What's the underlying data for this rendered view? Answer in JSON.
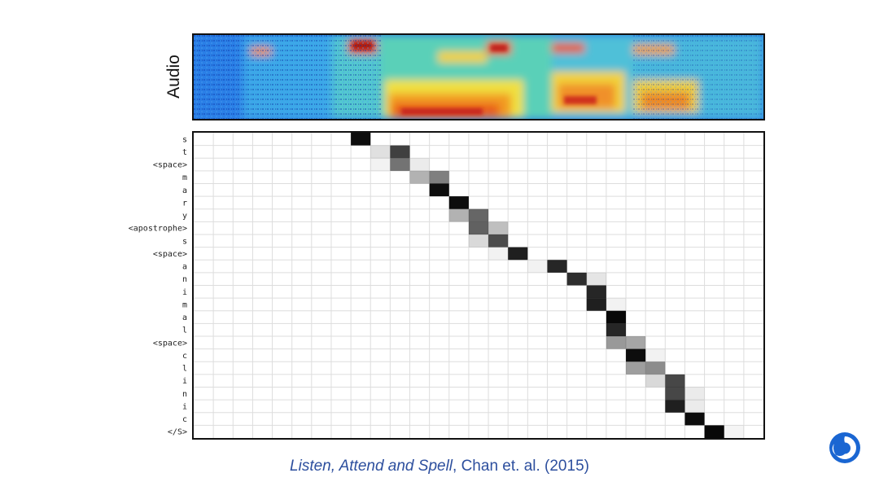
{
  "chart_data": [
    {
      "type": "heatmap",
      "title": "",
      "ylabel": "Audio",
      "xlabel": "",
      "description_colormap": "jet",
      "colors": {
        "low": "#1f6fe0",
        "mid": "#3fd0b0",
        "high": "#e8321a"
      }
    },
    {
      "type": "heatmap",
      "title": "",
      "xlabel": "",
      "ylabel": "",
      "grid": true,
      "colors": {
        "cell": "#000000",
        "grid": "#dddddd",
        "border": "#111111"
      },
      "n_cols": 29,
      "y_labels": [
        "s",
        "t",
        "<space>",
        "m",
        "a",
        "r",
        "y",
        "<apostrophe>",
        "s",
        "<space>",
        "a",
        "n",
        "i",
        "m",
        "a",
        "l",
        "<space>",
        "c",
        "l",
        "i",
        "n",
        "i",
        "c",
        "</S>"
      ],
      "cells": [
        [
          0,
          8,
          0.95
        ],
        [
          1,
          9,
          0.12
        ],
        [
          1,
          10,
          0.75
        ],
        [
          2,
          9,
          0.05
        ],
        [
          2,
          10,
          0.55
        ],
        [
          2,
          11,
          0.08
        ],
        [
          3,
          11,
          0.3
        ],
        [
          3,
          12,
          0.5
        ],
        [
          4,
          12,
          0.95
        ],
        [
          5,
          13,
          0.95
        ],
        [
          6,
          13,
          0.3
        ],
        [
          6,
          14,
          0.6
        ],
        [
          7,
          14,
          0.62
        ],
        [
          7,
          15,
          0.25
        ],
        [
          8,
          14,
          0.15
        ],
        [
          8,
          15,
          0.7
        ],
        [
          9,
          15,
          0.05
        ],
        [
          9,
          16,
          0.88
        ],
        [
          10,
          17,
          0.05
        ],
        [
          10,
          18,
          0.85
        ],
        [
          11,
          19,
          0.82
        ],
        [
          11,
          20,
          0.1
        ],
        [
          12,
          20,
          0.85
        ],
        [
          13,
          20,
          0.88
        ],
        [
          13,
          21,
          0.05
        ],
        [
          14,
          21,
          0.97
        ],
        [
          15,
          21,
          0.85
        ],
        [
          16,
          21,
          0.4
        ],
        [
          16,
          22,
          0.35
        ],
        [
          17,
          22,
          0.95
        ],
        [
          17,
          23,
          0.05
        ],
        [
          18,
          22,
          0.38
        ],
        [
          18,
          23,
          0.45
        ],
        [
          19,
          23,
          0.15
        ],
        [
          19,
          24,
          0.72
        ],
        [
          20,
          24,
          0.72
        ],
        [
          20,
          25,
          0.08
        ],
        [
          21,
          24,
          0.88
        ],
        [
          21,
          25,
          0.08
        ],
        [
          22,
          25,
          0.95
        ],
        [
          23,
          26,
          0.97
        ],
        [
          23,
          27,
          0.04
        ]
      ]
    }
  ],
  "citation": {
    "title": "Listen, Attend and Spell",
    "authors": ", Chan et. al. (2015)"
  },
  "logo_icon": "deepmind-logo-icon"
}
